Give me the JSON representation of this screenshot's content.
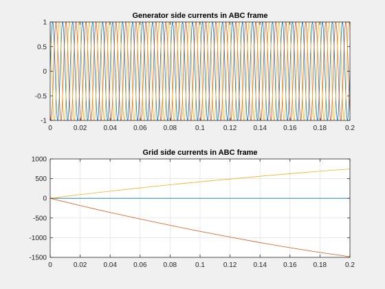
{
  "colors": {
    "figure_bg": "#f0f0f0",
    "axes_bg": "#ffffff",
    "grid": "#dfdfdf",
    "axis": "#262626",
    "phase_a": "#0072bd",
    "phase_b": "#d95319",
    "phase_c": "#edb120"
  },
  "chart_data": [
    {
      "type": "line",
      "title": "Generator side currents in ABC frame",
      "xlabel": "",
      "ylabel": "",
      "xlim": [
        0,
        0.2
      ],
      "ylim": [
        -1,
        1
      ],
      "xticks": [
        "0",
        "0.02",
        "0.04",
        "0.06",
        "0.08",
        "0.1",
        "0.12",
        "0.14",
        "0.16",
        "0.18",
        "0.2"
      ],
      "yticks": [
        "-1",
        "-0.5",
        "0",
        "0.5",
        "1"
      ],
      "grid": false,
      "legend": "none",
      "series": [
        {
          "type": "sinusoid",
          "amplitude": 1,
          "frequency_hz": 150,
          "phase_deg": 0,
          "color": "#0072bd",
          "x_range": [
            0,
            0.2
          ]
        },
        {
          "type": "sinusoid",
          "amplitude": 1,
          "frequency_hz": 150,
          "phase_deg": -120,
          "color": "#d95319",
          "x_range": [
            0,
            0.2
          ]
        },
        {
          "type": "sinusoid",
          "amplitude": 1,
          "frequency_hz": 150,
          "phase_deg": 120,
          "color": "#edb120",
          "x_range": [
            0,
            0.2
          ]
        }
      ]
    },
    {
      "type": "line",
      "title": "Grid side currents in ABC frame",
      "xlabel": "",
      "ylabel": "",
      "xlim": [
        0,
        0.2
      ],
      "ylim": [
        -1500,
        1000
      ],
      "xticks": [
        "0",
        "0.02",
        "0.04",
        "0.06",
        "0.08",
        "0.1",
        "0.12",
        "0.14",
        "0.16",
        "0.18",
        "0.2"
      ],
      "yticks": [
        "-1500",
        "-1000",
        "-500",
        "0",
        "500",
        "1000"
      ],
      "grid": true,
      "legend": "none",
      "series": [
        {
          "color": "#0072bd",
          "x": [
            0,
            0.02,
            0.04,
            0.06,
            0.08,
            0.1,
            0.12,
            0.14,
            0.16,
            0.18,
            0.2
          ],
          "y": [
            0,
            0,
            0,
            0,
            0,
            0,
            0,
            0,
            0,
            0,
            0
          ]
        },
        {
          "color": "#d95319",
          "x": [
            0,
            0.02,
            0.04,
            0.06,
            0.08,
            0.1,
            0.12,
            0.14,
            0.16,
            0.18,
            0.2
          ],
          "y": [
            0,
            -185,
            -360,
            -525,
            -685,
            -840,
            -985,
            -1125,
            -1255,
            -1375,
            -1485
          ]
        },
        {
          "color": "#edb120",
          "x": [
            0,
            0.02,
            0.04,
            0.06,
            0.08,
            0.1,
            0.12,
            0.14,
            0.16,
            0.18,
            0.2
          ],
          "y": [
            0,
            95,
            180,
            265,
            345,
            420,
            490,
            560,
            625,
            690,
            745
          ]
        }
      ]
    }
  ]
}
